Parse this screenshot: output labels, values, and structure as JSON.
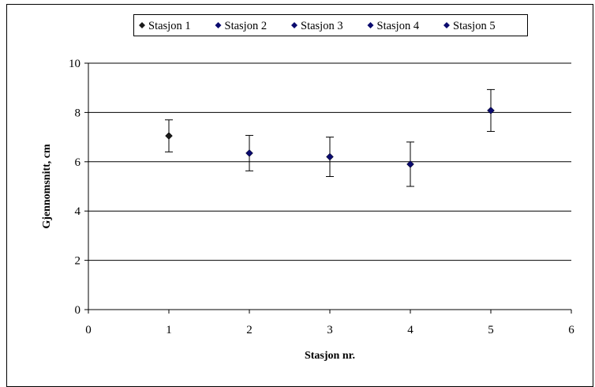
{
  "chart_data": {
    "type": "scatter",
    "title": "",
    "xlabel": "Stasjon nr.",
    "ylabel": "Gjennomsnitt, cm",
    "xlim": [
      0,
      6
    ],
    "ylim": [
      0,
      10
    ],
    "x_ticks": [
      "0",
      "1",
      "2",
      "3",
      "4",
      "5",
      "6"
    ],
    "y_ticks": [
      "0",
      "2",
      "4",
      "6",
      "8",
      "10"
    ],
    "grid": "horizontal",
    "legend_position": "top",
    "marker_color": "#0a0a6e",
    "series": [
      {
        "name": "Stasjon 1",
        "x": 1,
        "y": 7.05,
        "error": [
          0.65,
          0.65
        ],
        "color": "#1a1a1a"
      },
      {
        "name": "Stasjon 2",
        "x": 2,
        "y": 6.35,
        "error": [
          0.72,
          0.72
        ],
        "color": "#0a0a6e"
      },
      {
        "name": "Stasjon 3",
        "x": 3,
        "y": 6.2,
        "error": [
          0.8,
          0.8
        ],
        "color": "#0a0a6e"
      },
      {
        "name": "Stasjon 4",
        "x": 4,
        "y": 5.9,
        "error": [
          0.9,
          0.9
        ],
        "color": "#0a0a6e"
      },
      {
        "name": "Stasjon 5",
        "x": 5,
        "y": 8.08,
        "error": [
          0.85,
          0.85
        ],
        "color": "#0a0a6e"
      }
    ]
  }
}
